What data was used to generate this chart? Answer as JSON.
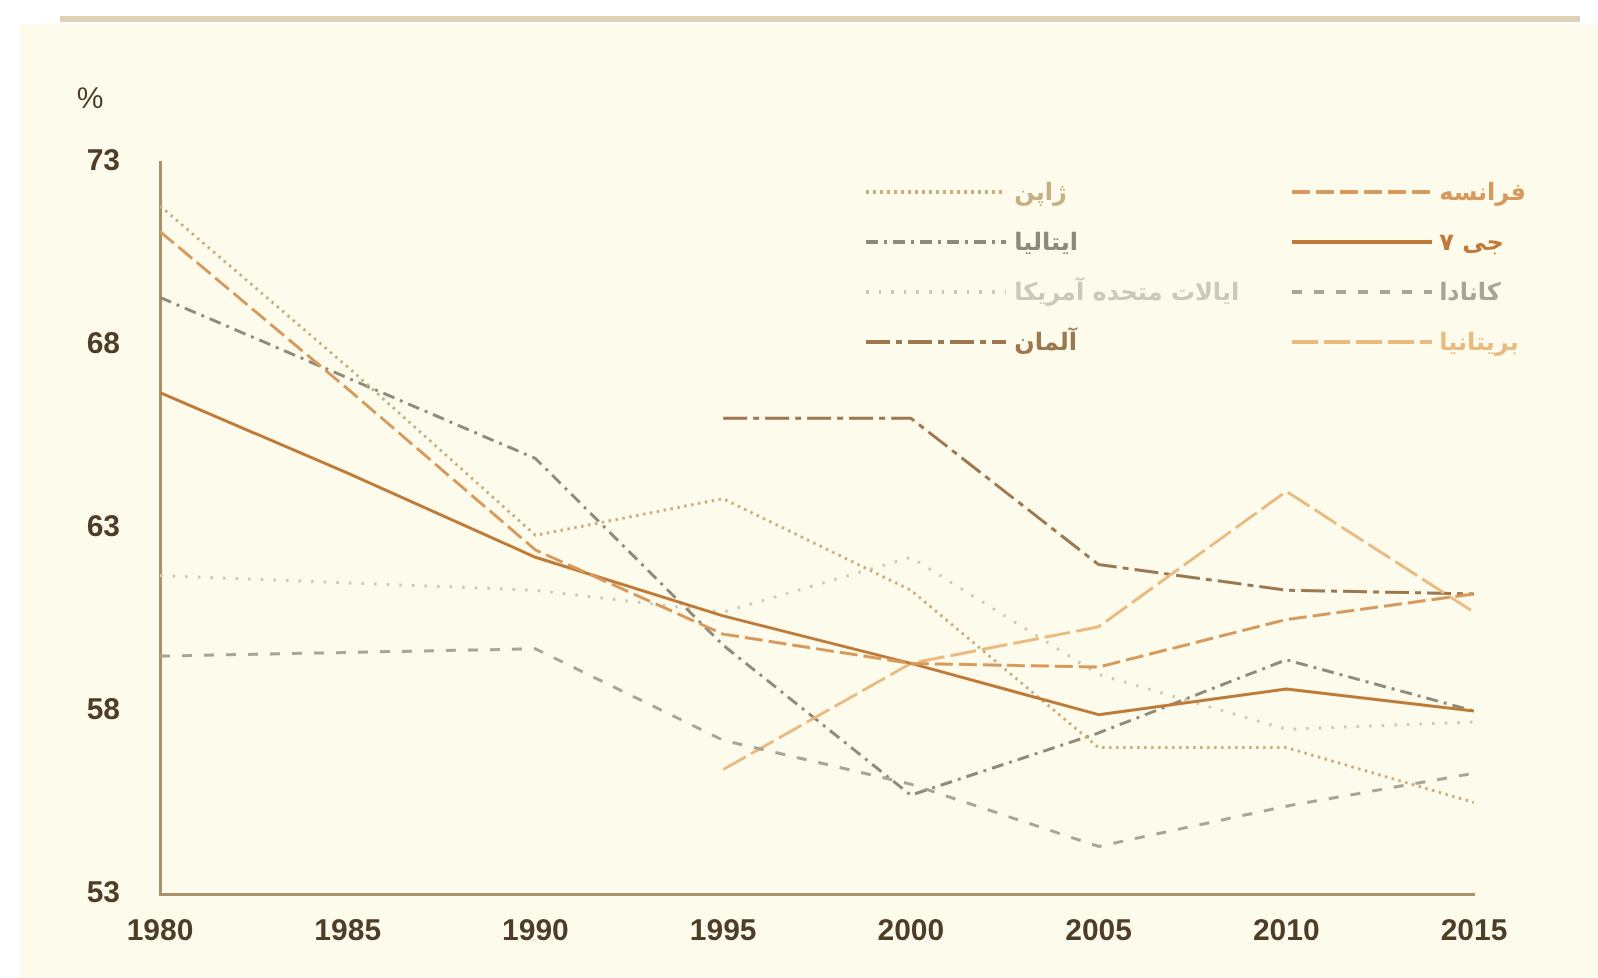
{
  "chart_data": {
    "type": "line",
    "ylabel": "%",
    "x": [
      1980,
      1985,
      1990,
      1995,
      2000,
      2005,
      2010,
      2015
    ],
    "xlim": [
      1980,
      2015
    ],
    "xticks": [
      1980,
      1985,
      1990,
      1995,
      2000,
      2005,
      2010,
      2015
    ],
    "ylim": [
      53,
      73
    ],
    "yticks": [
      53,
      58,
      63,
      68,
      73
    ],
    "legend": "top right",
    "marker": "none",
    "series": [
      {
        "name": "فرانسه",
        "color": "#d89a5c",
        "line_style": "dashed",
        "values": [
          71.1,
          66.8,
          62.4,
          60.1,
          59.3,
          59.2,
          60.5,
          61.2
        ]
      },
      {
        "name": "جی ۷",
        "color": "#c07a38",
        "line_style": "solid",
        "values": [
          66.7,
          64.5,
          62.2,
          60.6,
          59.3,
          57.9,
          58.6,
          58.0
        ]
      },
      {
        "name": "کانادا",
        "color": "#aaa492",
        "line_style": "dashed",
        "values": [
          59.5,
          59.6,
          59.7,
          57.2,
          56.0,
          54.3,
          55.4,
          56.3
        ]
      },
      {
        "name": "بریتانیا",
        "color": "#e9bb80",
        "line_style": "dashed",
        "values": [
          null,
          null,
          null,
          56.4,
          59.3,
          60.3,
          64.0,
          60.7
        ]
      },
      {
        "name": "ژاپن",
        "color": "#c8af82",
        "line_style": "dotted",
        "values": [
          71.8,
          67.4,
          62.8,
          63.8,
          61.3,
          57.0,
          57.0,
          55.5
        ]
      },
      {
        "name": "ایتالیا",
        "color": "#8f8b7a",
        "line_style": "dashed",
        "values": [
          69.3,
          67.1,
          64.9,
          59.8,
          55.7,
          57.4,
          59.4,
          58.0
        ]
      },
      {
        "name": "ایالات متحده آمریکا",
        "color": "#cdc8ba",
        "line_style": "dotted",
        "values": [
          61.7,
          61.5,
          61.3,
          60.7,
          62.2,
          59.0,
          57.5,
          57.7
        ]
      },
      {
        "name": "آلمان",
        "color": "#9c7850",
        "line_style": "dashed",
        "values": [
          null,
          null,
          null,
          66.0,
          66.0,
          62.0,
          61.3,
          61.2
        ]
      }
    ]
  }
}
